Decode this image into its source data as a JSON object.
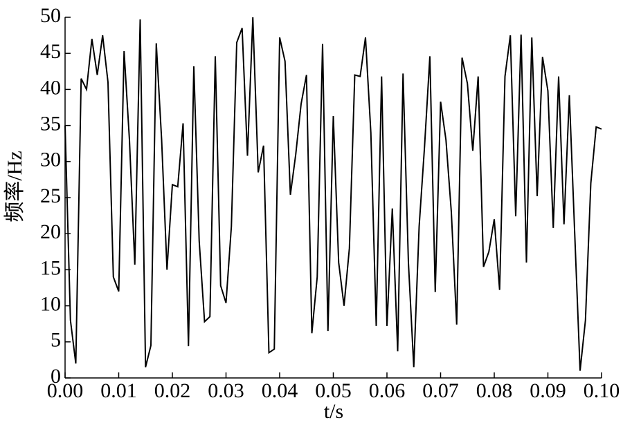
{
  "chart_data": {
    "type": "line",
    "xlabel": "t/s",
    "ylabel": "频率/Hz",
    "x": [
      0.0,
      0.001,
      0.002,
      0.003,
      0.004,
      0.005,
      0.006,
      0.007,
      0.008,
      0.009,
      0.01,
      0.011,
      0.012,
      0.013,
      0.014,
      0.015,
      0.016,
      0.017,
      0.018,
      0.019,
      0.02,
      0.021,
      0.022,
      0.023,
      0.024,
      0.025,
      0.026,
      0.027,
      0.028,
      0.029,
      0.03,
      0.031,
      0.032,
      0.033,
      0.034,
      0.035,
      0.036,
      0.037,
      0.038,
      0.039,
      0.04,
      0.041,
      0.042,
      0.043,
      0.044,
      0.045,
      0.046,
      0.047,
      0.048,
      0.049,
      0.05,
      0.051,
      0.052,
      0.053,
      0.054,
      0.055,
      0.056,
      0.057,
      0.058,
      0.059,
      0.06,
      0.061,
      0.062,
      0.063,
      0.064,
      0.065,
      0.066,
      0.067,
      0.068,
      0.069,
      0.07,
      0.071,
      0.072,
      0.073,
      0.074,
      0.075,
      0.076,
      0.077,
      0.078,
      0.079,
      0.08,
      0.081,
      0.082,
      0.083,
      0.084,
      0.085,
      0.086,
      0.087,
      0.088,
      0.089,
      0.09,
      0.091,
      0.092,
      0.093,
      0.094,
      0.095,
      0.096,
      0.097,
      0.098,
      0.099,
      0.1
    ],
    "values": [
      35,
      8,
      2,
      41.5,
      40,
      47,
      42,
      47.5,
      41,
      14,
      12,
      45.3,
      33,
      15.7,
      49.7,
      1.5,
      4.5,
      46.4,
      33,
      15,
      26.8,
      26.5,
      35.3,
      4.4,
      43.2,
      19,
      7.8,
      8.5,
      44.6,
      12.8,
      10.4,
      21,
      46.5,
      48.5,
      30.8,
      50,
      28.5,
      32.2,
      3.5,
      4,
      47.2,
      43.9,
      25.4,
      31,
      38,
      42,
      6.2,
      14,
      46.3,
      6.5,
      36.3,
      16,
      10,
      18,
      42,
      41.8,
      47.2,
      34,
      7.2,
      41.8,
      7.2,
      23.5,
      3.7,
      42.2,
      16,
      1.5,
      21,
      32,
      44.6,
      11.9,
      38.3,
      33,
      23,
      7.4,
      44.4,
      40.8,
      31.5,
      41.8,
      15.4,
      17.5,
      22,
      12.2,
      41.8,
      47.5,
      22.4,
      47.6,
      16,
      47.2,
      25.2,
      44.5,
      39.8,
      20.8,
      41.8,
      21.3,
      39.2,
      20,
      1,
      8,
      27,
      34.8,
      34.5
    ],
    "color": "#000000",
    "xlim": [
      0,
      0.1
    ],
    "ylim": [
      0,
      50
    ],
    "xticks": [
      {
        "value": 0,
        "label": "0.00"
      },
      {
        "value": 0.01,
        "label": "0.01"
      },
      {
        "value": 0.02,
        "label": "0.02"
      },
      {
        "value": 0.03,
        "label": "0.03"
      },
      {
        "value": 0.04,
        "label": "0.04"
      },
      {
        "value": 0.05,
        "label": "0.05"
      },
      {
        "value": 0.06,
        "label": "0.06"
      },
      {
        "value": 0.07,
        "label": "0.07"
      },
      {
        "value": 0.08,
        "label": "0.08"
      },
      {
        "value": 0.09,
        "label": "0.09"
      },
      {
        "value": 0.1,
        "label": "0.10"
      }
    ],
    "yticks": [
      0,
      5,
      10,
      15,
      20,
      25,
      30,
      35,
      40,
      45,
      50
    ]
  }
}
